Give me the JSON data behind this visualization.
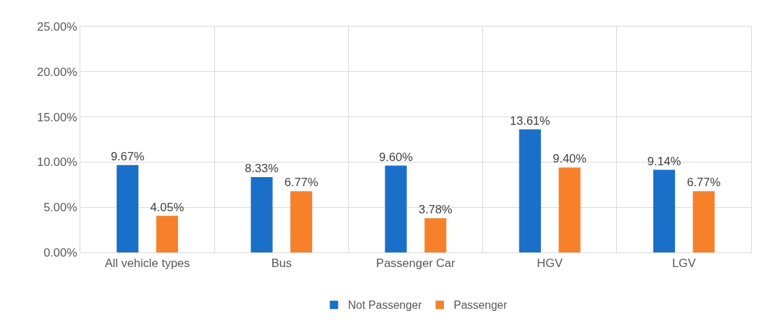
{
  "chart_data": {
    "type": "bar",
    "categories": [
      "All vehicle types",
      "Bus",
      "Passenger Car",
      "HGV",
      "LGV"
    ],
    "series": [
      {
        "name": "Not Passenger",
        "color": "#1a70c8",
        "values": [
          9.67,
          8.33,
          9.6,
          13.61,
          9.14
        ],
        "value_labels": [
          "9.67%",
          "8.33%",
          "9.60%",
          "13.61%",
          "9.14%"
        ]
      },
      {
        "name": "Passenger",
        "color": "#f7802a",
        "values": [
          4.05,
          6.77,
          3.78,
          9.4,
          6.77
        ],
        "value_labels": [
          "4.05%",
          "6.77%",
          "3.78%",
          "9.40%",
          "6.77%"
        ]
      }
    ],
    "ylim": [
      0,
      25
    ],
    "yticks": [
      {
        "value": 0,
        "label": "0.00%"
      },
      {
        "value": 5,
        "label": "5.00%"
      },
      {
        "value": 10,
        "label": "10.00%"
      },
      {
        "value": 15,
        "label": "15.00%"
      },
      {
        "value": 20,
        "label": "20.00%"
      },
      {
        "value": 25,
        "label": "25.00%"
      }
    ],
    "grid": true,
    "legend": "bottom"
  }
}
